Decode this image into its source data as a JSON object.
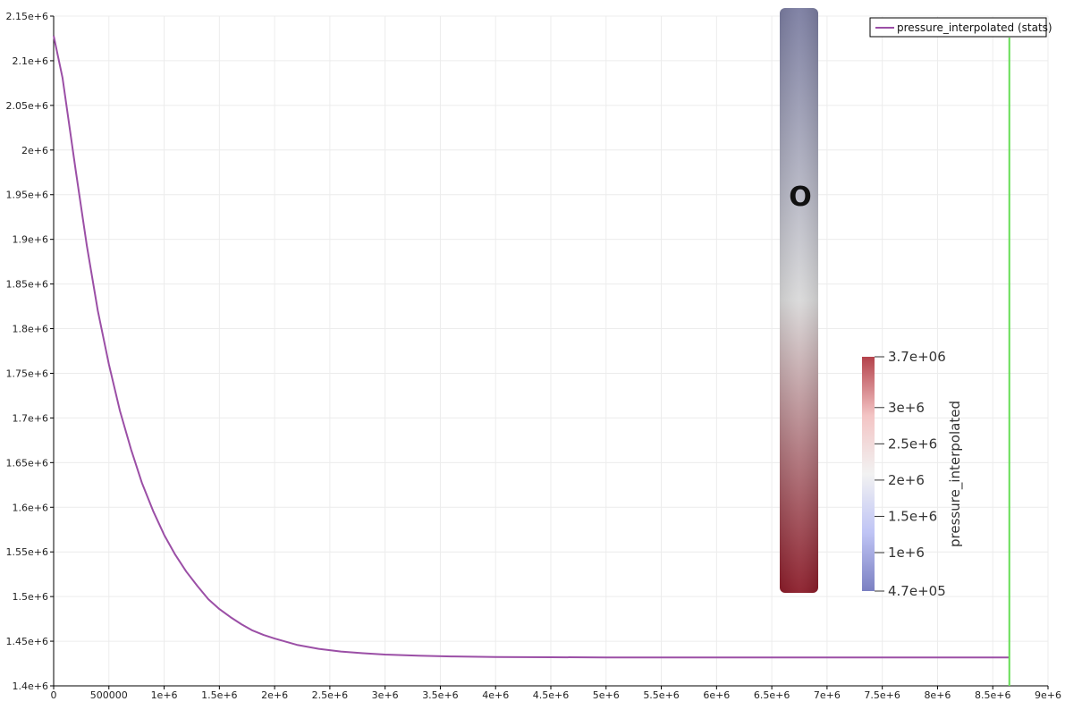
{
  "chart_data": {
    "type": "line",
    "title": "",
    "xlabel": "",
    "ylabel": "",
    "xlim": [
      0,
      9000000
    ],
    "ylim": [
      1400000,
      2150000
    ],
    "grid": true,
    "x_ticks": [
      {
        "value": 0,
        "label": "0"
      },
      {
        "value": 500000,
        "label": "500000"
      },
      {
        "value": 1000000,
        "label": "1e+6"
      },
      {
        "value": 1500000,
        "label": "1.5e+6"
      },
      {
        "value": 2000000,
        "label": "2e+6"
      },
      {
        "value": 2500000,
        "label": "2.5e+6"
      },
      {
        "value": 3000000,
        "label": "3e+6"
      },
      {
        "value": 3500000,
        "label": "3.5e+6"
      },
      {
        "value": 4000000,
        "label": "4e+6"
      },
      {
        "value": 4500000,
        "label": "4.5e+6"
      },
      {
        "value": 5000000,
        "label": "5e+6"
      },
      {
        "value": 5500000,
        "label": "5.5e+6"
      },
      {
        "value": 6000000,
        "label": "6e+6"
      },
      {
        "value": 6500000,
        "label": "6.5e+6"
      },
      {
        "value": 7000000,
        "label": "7e+6"
      },
      {
        "value": 7500000,
        "label": "7.5e+6"
      },
      {
        "value": 8000000,
        "label": "8e+6"
      },
      {
        "value": 8500000,
        "label": "8.5e+6"
      },
      {
        "value": 9000000,
        "label": "9e+6"
      }
    ],
    "y_ticks": [
      {
        "value": 1400000,
        "label": "1.4e+6"
      },
      {
        "value": 1450000,
        "label": "1.45e+6"
      },
      {
        "value": 1500000,
        "label": "1.5e+6"
      },
      {
        "value": 1550000,
        "label": "1.55e+6"
      },
      {
        "value": 1600000,
        "label": "1.6e+6"
      },
      {
        "value": 1650000,
        "label": "1.65e+6"
      },
      {
        "value": 1700000,
        "label": "1.7e+6"
      },
      {
        "value": 1750000,
        "label": "1.75e+6"
      },
      {
        "value": 1800000,
        "label": "1.8e+6"
      },
      {
        "value": 1850000,
        "label": "1.85e+6"
      },
      {
        "value": 1900000,
        "label": "1.9e+6"
      },
      {
        "value": 1950000,
        "label": "1.95e+6"
      },
      {
        "value": 2000000,
        "label": "2e+6"
      },
      {
        "value": 2050000,
        "label": "2.05e+6"
      },
      {
        "value": 2100000,
        "label": "2.1e+6"
      },
      {
        "value": 2150000,
        "label": "2.15e+6"
      }
    ],
    "series": [
      {
        "name": "pressure_interpolated (stats)",
        "color": "#9b4fa6",
        "x": [
          0,
          80000,
          200000,
          300000,
          400000,
          500000,
          600000,
          700000,
          800000,
          900000,
          1000000,
          1100000,
          1200000,
          1300000,
          1400000,
          1500000,
          1600000,
          1700000,
          1800000,
          1900000,
          2000000,
          2200000,
          2400000,
          2600000,
          2800000,
          3000000,
          3300000,
          3600000,
          4000000,
          4500000,
          5000000,
          6000000,
          7000000,
          8000000,
          8650000
        ],
        "y": [
          2128000,
          2081000,
          1977000,
          1893000,
          1820000,
          1760000,
          1708000,
          1665000,
          1627000,
          1596000,
          1569000,
          1547000,
          1528000,
          1512000,
          1497000,
          1486000,
          1477000,
          1469000,
          1462000,
          1457000,
          1453000,
          1446000,
          1441500,
          1438500,
          1436500,
          1435000,
          1433700,
          1432900,
          1432300,
          1432000,
          1431800,
          1431700,
          1431700,
          1431700,
          1431700
        ]
      }
    ],
    "marker_line": {
      "x": 8650000,
      "color": "#66dd55"
    },
    "legend": {
      "position": "top-right"
    },
    "overlay": {
      "label": "O",
      "top_color": "#7a7ca0",
      "mid_color": "#d9d9d9",
      "bottom_color": "#8a1b28"
    },
    "colorbar": {
      "title": "pressure_interpolated",
      "range": [
        470000,
        3700000
      ],
      "ticks": [
        {
          "value": 3700000,
          "label": "3.7e+06"
        },
        {
          "value": 3000000,
          "label": "3e+6"
        },
        {
          "value": 2500000,
          "label": "2.5e+6"
        },
        {
          "value": 2000000,
          "label": "2e+6"
        },
        {
          "value": 1500000,
          "label": "1.5e+6"
        },
        {
          "value": 1000000,
          "label": "1e+6"
        },
        {
          "value": 470000,
          "label": "4.7e+05"
        }
      ],
      "colors": [
        "#7b80c2",
        "#bfc4f5",
        "#f2f2f2",
        "#f3c4c4",
        "#b4424b"
      ]
    }
  }
}
